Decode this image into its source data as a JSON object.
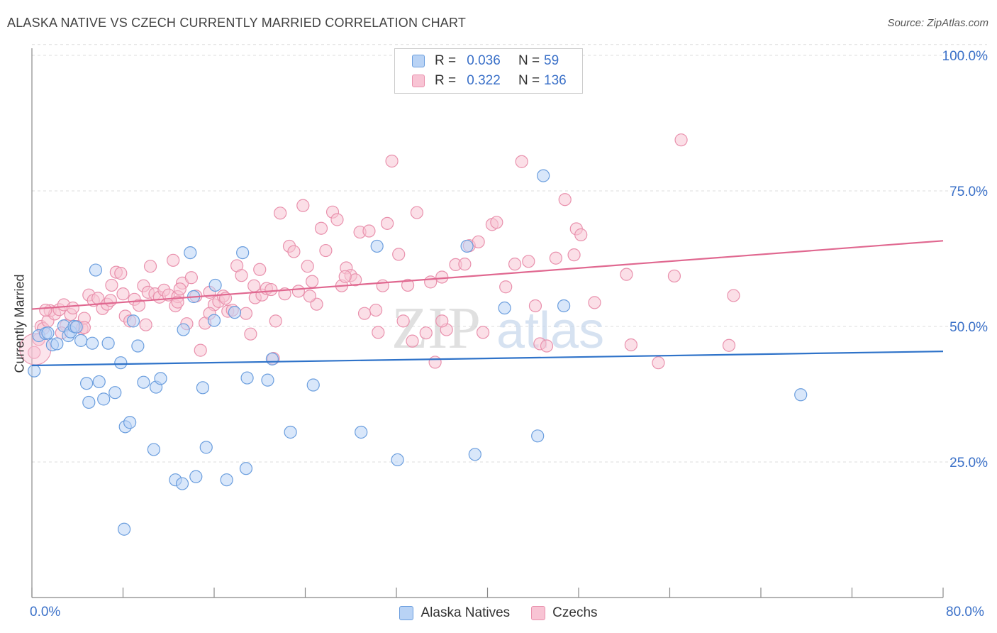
{
  "title": "ALASKA NATIVE VS CZECH CURRENTLY MARRIED CORRELATION CHART",
  "source": "Source: ZipAtlas.com",
  "watermark": {
    "zip": "ZIP",
    "atlas": "atlas"
  },
  "legend_top": [
    {
      "r_label": "R =",
      "r_value": "0.036",
      "n_label": "N =",
      "n_value": "59"
    },
    {
      "r_label": "R =",
      "r_value": "0.322",
      "n_label": "N =",
      "n_value": "136"
    }
  ],
  "legend_bottom": [
    "Alaska Natives",
    "Czechs"
  ],
  "colors": {
    "blue_fill": "#b9d3f5",
    "blue_stroke": "#6b9ede",
    "blue_line": "#2f73c9",
    "pink_fill": "#f8c4d4",
    "pink_stroke": "#e991ad",
    "pink_line": "#e06890",
    "axis_text": "#3a70c8",
    "grid": "#dddddd"
  },
  "chart_data": {
    "type": "scatter",
    "title": "ALASKA NATIVE VS CZECH CURRENTLY MARRIED CORRELATION CHART",
    "xlabel": "",
    "ylabel": "Currently Married",
    "xlim": [
      0,
      80
    ],
    "ylim": [
      0,
      102
    ],
    "x_tick_labels": [
      "0.0%",
      "80.0%"
    ],
    "y_ticks": [
      25,
      50,
      75,
      100
    ],
    "y_tick_labels": [
      "25.0%",
      "50.0%",
      "75.0%",
      "100.0%"
    ],
    "grid": true,
    "legend": "top-center",
    "series": [
      {
        "name": "Alaska Natives",
        "r": 0.036,
        "n": 59,
        "trend": {
          "x": [
            0,
            80
          ],
          "y": [
            42.8,
            45.4
          ]
        },
        "points": [
          [
            0.2,
            41.8
          ],
          [
            0.6,
            48.3
          ],
          [
            1.2,
            48.7
          ],
          [
            1.4,
            48.8
          ],
          [
            1.8,
            46.6
          ],
          [
            2.2,
            46.8
          ],
          [
            2.8,
            50.1
          ],
          [
            3.2,
            48.3
          ],
          [
            3.4,
            49.0
          ],
          [
            3.7,
            50.0
          ],
          [
            4.3,
            47.4
          ],
          [
            5.3,
            46.9
          ],
          [
            4.8,
            39.5
          ],
          [
            5.0,
            36.0
          ],
          [
            5.6,
            60.4
          ],
          [
            5.9,
            39.8
          ],
          [
            6.3,
            36.6
          ],
          [
            6.7,
            46.9
          ],
          [
            7.3,
            37.8
          ],
          [
            7.8,
            43.3
          ],
          [
            8.2,
            31.5
          ],
          [
            8.6,
            32.3
          ],
          [
            8.9,
            51.0
          ],
          [
            9.3,
            46.4
          ],
          [
            9.8,
            39.7
          ],
          [
            10.7,
            27.3
          ],
          [
            10.9,
            38.8
          ],
          [
            11.3,
            40.4
          ],
          [
            8.1,
            12.6
          ],
          [
            12.6,
            21.7
          ],
          [
            13.2,
            21.0
          ],
          [
            13.3,
            49.4
          ],
          [
            13.9,
            63.6
          ],
          [
            14.2,
            55.5
          ],
          [
            15.0,
            38.7
          ],
          [
            15.3,
            27.7
          ],
          [
            16.1,
            57.6
          ],
          [
            16.0,
            51.1
          ],
          [
            17.1,
            21.7
          ],
          [
            17.8,
            52.6
          ],
          [
            18.5,
            63.6
          ],
          [
            18.8,
            23.8
          ],
          [
            18.9,
            40.5
          ],
          [
            21.1,
            44.0
          ],
          [
            20.7,
            40.1
          ],
          [
            22.7,
            30.5
          ],
          [
            24.7,
            39.2
          ],
          [
            28.9,
            30.5
          ],
          [
            30.3,
            64.8
          ],
          [
            32.1,
            25.4
          ],
          [
            38.2,
            64.8
          ],
          [
            38.9,
            26.4
          ],
          [
            41.5,
            53.4
          ],
          [
            44.4,
            29.8
          ],
          [
            44.9,
            77.8
          ],
          [
            46.7,
            53.8
          ],
          [
            67.5,
            37.4
          ],
          [
            3.9,
            49.9
          ],
          [
            14.4,
            22.3
          ]
        ]
      },
      {
        "name": "Czechs",
        "r": 0.322,
        "n": 136,
        "trend": {
          "x": [
            0,
            80
          ],
          "y": [
            53.2,
            65.8
          ]
        },
        "points": [
          [
            0.2,
            45.2
          ],
          [
            0.6,
            47.6
          ],
          [
            0.8,
            50.0
          ],
          [
            1.0,
            49.6
          ],
          [
            1.4,
            51.0
          ],
          [
            1.6,
            52.9
          ],
          [
            2.0,
            52.3
          ],
          [
            2.4,
            53.1
          ],
          [
            2.8,
            54.0
          ],
          [
            3.0,
            50.2
          ],
          [
            3.4,
            52.2
          ],
          [
            3.6,
            53.4
          ],
          [
            4.0,
            50.0
          ],
          [
            4.4,
            49.6
          ],
          [
            4.6,
            51.5
          ],
          [
            5.0,
            55.8
          ],
          [
            5.4,
            54.8
          ],
          [
            5.8,
            55.2
          ],
          [
            6.2,
            53.3
          ],
          [
            6.6,
            54.1
          ],
          [
            7.0,
            57.6
          ],
          [
            7.4,
            60.0
          ],
          [
            7.8,
            59.8
          ],
          [
            8.2,
            51.9
          ],
          [
            8.6,
            51.0
          ],
          [
            9.0,
            55.0
          ],
          [
            9.4,
            53.9
          ],
          [
            9.8,
            57.5
          ],
          [
            10.2,
            56.3
          ],
          [
            10.4,
            61.1
          ],
          [
            10.8,
            56.0
          ],
          [
            11.2,
            55.4
          ],
          [
            11.6,
            56.7
          ],
          [
            12.0,
            55.8
          ],
          [
            12.4,
            62.2
          ],
          [
            12.6,
            53.8
          ],
          [
            12.8,
            55.5
          ],
          [
            13.2,
            58.0
          ],
          [
            13.6,
            50.5
          ],
          [
            14.0,
            59.0
          ],
          [
            14.4,
            55.6
          ],
          [
            14.8,
            45.6
          ],
          [
            15.2,
            50.6
          ],
          [
            15.6,
            56.3
          ],
          [
            16.0,
            54.0
          ],
          [
            16.4,
            54.6
          ],
          [
            16.8,
            55.6
          ],
          [
            17.2,
            52.8
          ],
          [
            17.6,
            53.0
          ],
          [
            18.0,
            61.2
          ],
          [
            18.4,
            59.4
          ],
          [
            18.8,
            52.4
          ],
          [
            19.2,
            48.6
          ],
          [
            19.6,
            55.3
          ],
          [
            20.0,
            60.5
          ],
          [
            20.2,
            55.8
          ],
          [
            20.6,
            57.0
          ],
          [
            21.0,
            56.8
          ],
          [
            21.4,
            51.0
          ],
          [
            21.8,
            70.9
          ],
          [
            22.2,
            56.0
          ],
          [
            22.6,
            64.8
          ],
          [
            23.0,
            63.8
          ],
          [
            23.4,
            56.5
          ],
          [
            23.8,
            72.3
          ],
          [
            24.2,
            61.1
          ],
          [
            24.6,
            58.3
          ],
          [
            25.0,
            54.1
          ],
          [
            25.4,
            68.1
          ],
          [
            25.8,
            64.0
          ],
          [
            26.4,
            71.1
          ],
          [
            26.8,
            69.7
          ],
          [
            27.2,
            57.5
          ],
          [
            27.6,
            60.8
          ],
          [
            28.0,
            59.4
          ],
          [
            28.4,
            58.6
          ],
          [
            28.8,
            67.4
          ],
          [
            29.2,
            52.4
          ],
          [
            29.6,
            67.6
          ],
          [
            30.2,
            53.0
          ],
          [
            30.4,
            48.9
          ],
          [
            30.8,
            57.5
          ],
          [
            31.2,
            69.0
          ],
          [
            31.6,
            80.5
          ],
          [
            32.2,
            63.3
          ],
          [
            32.6,
            51.0
          ],
          [
            33.0,
            57.6
          ],
          [
            33.4,
            47.3
          ],
          [
            33.8,
            71.0
          ],
          [
            34.6,
            48.8
          ],
          [
            35.0,
            58.2
          ],
          [
            35.4,
            43.4
          ],
          [
            36.0,
            59.1
          ],
          [
            36.4,
            49.4
          ],
          [
            37.2,
            61.4
          ],
          [
            38.0,
            61.5
          ],
          [
            38.4,
            64.9
          ],
          [
            39.2,
            65.6
          ],
          [
            39.6,
            48.9
          ],
          [
            40.4,
            68.8
          ],
          [
            40.8,
            69.2
          ],
          [
            41.6,
            57.3
          ],
          [
            42.4,
            61.5
          ],
          [
            43.0,
            80.4
          ],
          [
            43.6,
            62.0
          ],
          [
            44.2,
            53.8
          ],
          [
            44.6,
            46.8
          ],
          [
            45.2,
            46.4
          ],
          [
            46.0,
            62.6
          ],
          [
            46.8,
            73.4
          ],
          [
            47.6,
            63.2
          ],
          [
            47.8,
            68.0
          ],
          [
            48.2,
            66.9
          ],
          [
            49.4,
            54.4
          ],
          [
            52.6,
            46.6
          ],
          [
            52.2,
            59.6
          ],
          [
            55.0,
            43.3
          ],
          [
            56.4,
            59.3
          ],
          [
            57.0,
            84.4
          ],
          [
            61.2,
            46.5
          ],
          [
            61.6,
            55.7
          ],
          [
            1.2,
            53.0
          ],
          [
            6.9,
            54.8
          ],
          [
            10.0,
            50.3
          ],
          [
            12.8,
            54.5
          ],
          [
            15.6,
            52.4
          ],
          [
            17.0,
            55.2
          ],
          [
            19.5,
            57.5
          ],
          [
            21.2,
            44.1
          ],
          [
            27.5,
            59.2
          ],
          [
            36.0,
            51.0
          ],
          [
            24.4,
            55.6
          ],
          [
            2.6,
            48.8
          ],
          [
            13.0,
            56.9
          ],
          [
            8.0,
            56.0
          ],
          [
            4.6,
            49.8
          ]
        ]
      }
    ]
  }
}
